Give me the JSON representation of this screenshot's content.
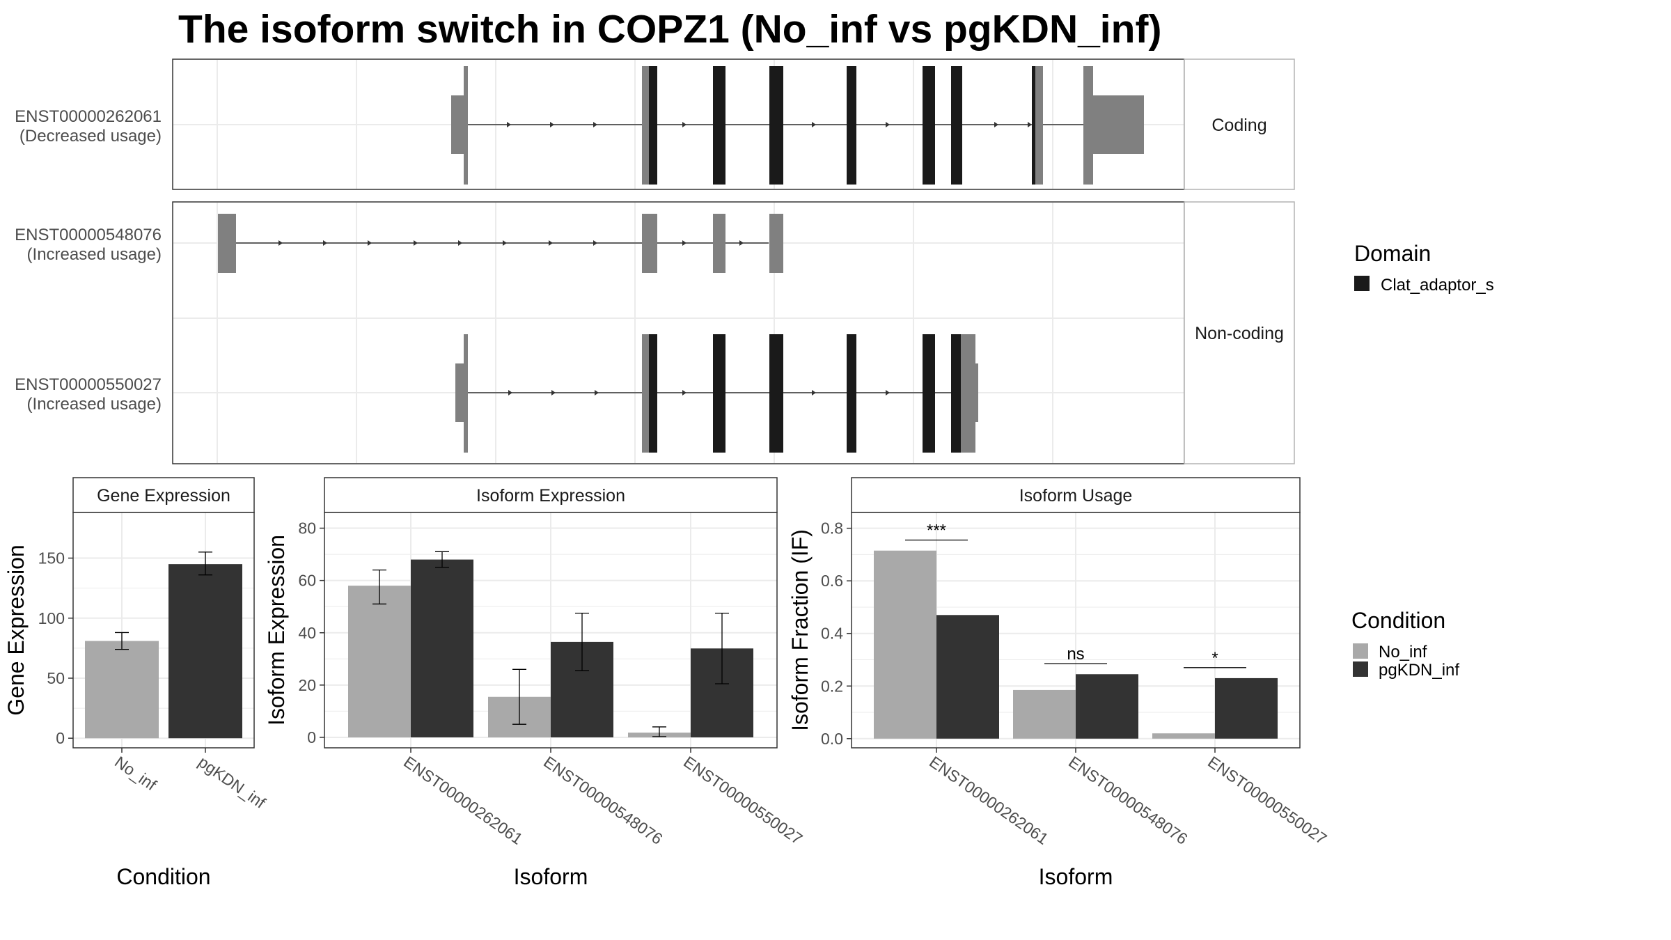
{
  "title": "The isoform switch in COPZ1 (No_inf vs pgKDN_inf)",
  "colors": {
    "no_inf": "#a9a9a9",
    "pgkdn_inf": "#333333",
    "domain": "#1a1a1a",
    "exon_plain": "#808080",
    "grid": "#ebebeb"
  },
  "transcripts": {
    "facets": [
      "Coding",
      "Non-coding"
    ],
    "isoforms": [
      {
        "id": "ENST00000262061",
        "usage": "(Decreased usage)",
        "facet": "Coding"
      },
      {
        "id": "ENST00000548076",
        "usage": "(Increased usage)",
        "facet": "Non-coding"
      },
      {
        "id": "ENST00000550027",
        "usage": "(Increased usage)",
        "facet": "Non-coding"
      }
    ]
  },
  "domain_legend": {
    "title": "Domain",
    "items": [
      {
        "label": "Clat_adaptor_s",
        "color": "#1a1a1a"
      }
    ]
  },
  "condition_legend": {
    "title": "Condition",
    "items": [
      {
        "label": "No_inf",
        "color": "#a9a9a9"
      },
      {
        "label": "pgKDN_inf",
        "color": "#333333"
      }
    ]
  },
  "chart_data": [
    {
      "type": "bar",
      "title": "Gene Expression",
      "xlabel": "Condition",
      "ylabel": "Gene Expression",
      "categories": [
        "No_inf",
        "pgKDN_inf"
      ],
      "values": [
        81,
        145
      ],
      "error": [
        [
          74,
          88
        ],
        [
          136,
          155
        ]
      ],
      "ylim": [
        -8,
        188
      ],
      "yticks": [
        0,
        50,
        100,
        150
      ]
    },
    {
      "type": "bar",
      "title": "Isoform Expression",
      "xlabel": "Isoform",
      "ylabel": "Isoform Expression",
      "categories": [
        "ENST00000262061",
        "ENST00000548076",
        "ENST00000550027"
      ],
      "series": [
        {
          "name": "No_inf",
          "values": [
            58,
            15.5,
            1.8
          ],
          "error": [
            [
              51,
              64
            ],
            [
              5,
              26
            ],
            [
              0.3,
              4
            ]
          ]
        },
        {
          "name": "pgKDN_inf",
          "values": [
            68,
            36.5,
            34
          ],
          "error": [
            [
              65,
              71
            ],
            [
              25.5,
              47.5
            ],
            [
              20.5,
              47.5
            ]
          ]
        }
      ],
      "ylim": [
        -4,
        86
      ],
      "yticks": [
        0,
        20,
        40,
        60,
        80
      ]
    },
    {
      "type": "bar",
      "title": "Isoform Usage",
      "xlabel": "Isoform",
      "ylabel": "Isoform Fraction (IF)",
      "categories": [
        "ENST00000262061",
        "ENST00000548076",
        "ENST00000550027"
      ],
      "series": [
        {
          "name": "No_inf",
          "values": [
            0.715,
            0.185,
            0.02
          ]
        },
        {
          "name": "pgKDN_inf",
          "values": [
            0.47,
            0.245,
            0.23
          ]
        }
      ],
      "significance": [
        "***",
        "ns",
        "*"
      ],
      "ylim": [
        -0.035,
        0.86
      ],
      "yticks": [
        "0.0",
        "0.2",
        "0.4",
        "0.6",
        "0.8"
      ]
    }
  ]
}
